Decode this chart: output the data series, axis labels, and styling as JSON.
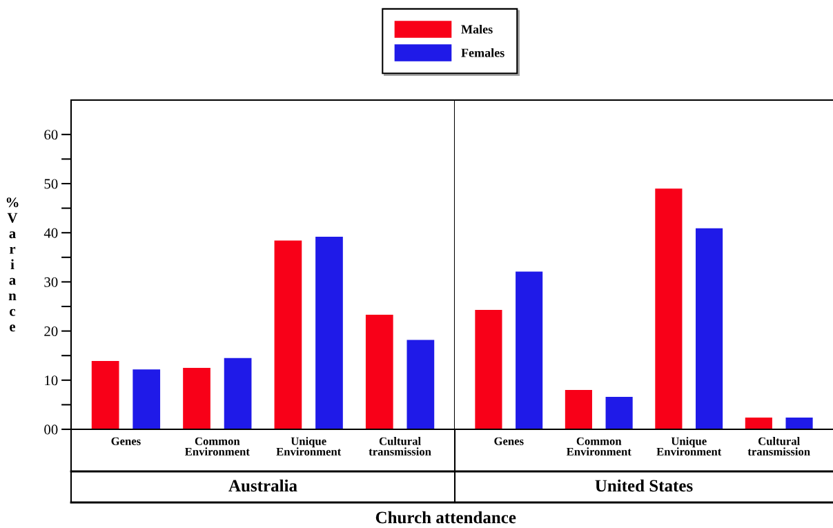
{
  "chart_data": [
    {
      "type": "bar",
      "title": "Australia",
      "xlabel": "Church attendance",
      "ylabel": "%Variance",
      "legend": "top",
      "categories": [
        "Genes",
        "Common Environment",
        "Unique Environment",
        "Cultural transmission"
      ],
      "series": [
        {
          "name": "Males",
          "color": "#f80018",
          "values": [
            13.9,
            12.5,
            38.4,
            23.3
          ]
        },
        {
          "name": "Females",
          "color": "#1f1ae8",
          "values": [
            12.2,
            14.5,
            39.2,
            18.2
          ]
        }
      ],
      "ylim": [
        0,
        67
      ],
      "yticks": [
        {
          "value": 0,
          "label": "00"
        },
        {
          "value": 5,
          "label": null
        },
        10,
        {
          "value": 15,
          "label": null
        },
        20,
        {
          "value": 25,
          "label": null
        },
        30,
        {
          "value": 35,
          "label": null
        },
        40,
        {
          "value": 45,
          "label": null
        },
        50,
        {
          "value": 55,
          "label": null
        },
        60
      ],
      "grid": false
    },
    {
      "type": "bar",
      "title": "United States",
      "tick_labels": "x",
      "categories": [
        "Genes",
        "Common Environment",
        "Unique Environment",
        "Cultural transmission"
      ],
      "series": [
        {
          "color": "#f80018",
          "values": [
            24.3,
            8.0,
            49.0,
            2.4
          ]
        },
        {
          "color": "#1f1ae8",
          "values": [
            32.1,
            6.6,
            40.9,
            2.4
          ]
        }
      ],
      "ylim": [
        0,
        67
      ],
      "grid": false
    }
  ]
}
